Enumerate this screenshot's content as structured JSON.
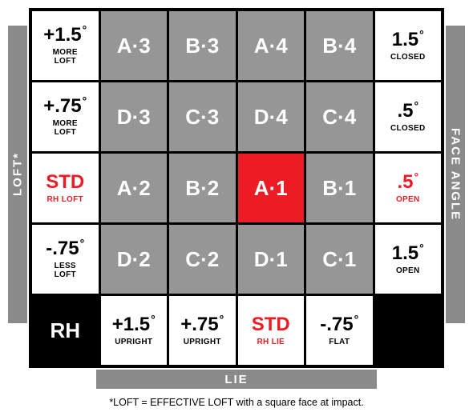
{
  "axes": {
    "left": "LOFT*",
    "right": "FACE ANGLE",
    "bottom": "LIE"
  },
  "footnote": "*LOFT = EFFECTIVE LOFT with a square face at impact.",
  "rows": [
    [
      {
        "type": "white",
        "main": "+1.5",
        "deg": true,
        "sub": "MORE\nLOFT"
      },
      {
        "type": "gray",
        "main": "A·3"
      },
      {
        "type": "gray",
        "main": "B·3"
      },
      {
        "type": "gray",
        "main": "A·4"
      },
      {
        "type": "gray",
        "main": "B·4"
      },
      {
        "type": "white",
        "main": "1.5",
        "deg": true,
        "sub": "CLOSED"
      }
    ],
    [
      {
        "type": "white",
        "main": "+.75",
        "deg": true,
        "sub": "MORE\nLOFT"
      },
      {
        "type": "gray",
        "main": "D·3"
      },
      {
        "type": "gray",
        "main": "C·3"
      },
      {
        "type": "gray",
        "main": "D·4"
      },
      {
        "type": "gray",
        "main": "C·4"
      },
      {
        "type": "white",
        "main": ".5",
        "deg": true,
        "sub": "CLOSED"
      }
    ],
    [
      {
        "type": "white",
        "redtext": true,
        "main": "STD",
        "sub": "RH LOFT"
      },
      {
        "type": "gray",
        "main": "A·2"
      },
      {
        "type": "gray",
        "main": "B·2"
      },
      {
        "type": "red",
        "main": "A·1"
      },
      {
        "type": "gray",
        "main": "B·1"
      },
      {
        "type": "white",
        "redtext": true,
        "main": ".5",
        "deg": true,
        "sub": "OPEN"
      }
    ],
    [
      {
        "type": "white",
        "main": "-.75",
        "deg": true,
        "sub": "LESS\nLOFT"
      },
      {
        "type": "gray",
        "main": "D·2"
      },
      {
        "type": "gray",
        "main": "C·2"
      },
      {
        "type": "gray",
        "main": "D·1"
      },
      {
        "type": "gray",
        "main": "C·1"
      },
      {
        "type": "white",
        "main": "1.5",
        "deg": true,
        "sub": "OPEN"
      }
    ],
    [
      {
        "type": "black",
        "main": "RH"
      },
      {
        "type": "white",
        "main": "+1.5",
        "deg": true,
        "sub": "UPRIGHT"
      },
      {
        "type": "white",
        "main": "+.75",
        "deg": true,
        "sub": "UPRIGHT"
      },
      {
        "type": "white",
        "redtext": true,
        "main": "STD",
        "sub": "RH LIE"
      },
      {
        "type": "white",
        "main": "-.75",
        "deg": true,
        "sub": "FLAT"
      },
      {
        "type": "black",
        "main": ""
      }
    ]
  ],
  "colors": {
    "gray": "#969696",
    "red": "#ec1c24",
    "black": "#000000",
    "white": "#ffffff",
    "axis": "#8a8a8a"
  }
}
